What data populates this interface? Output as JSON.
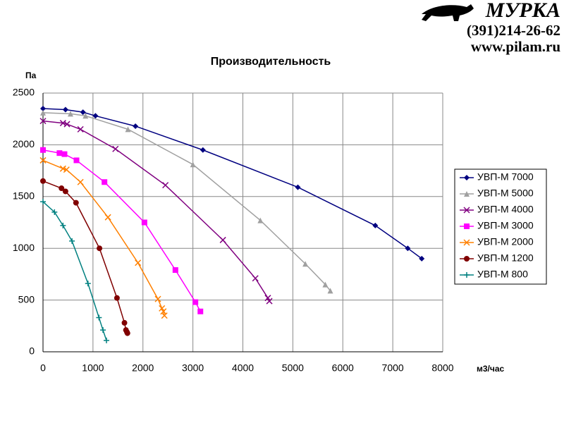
{
  "logo": {
    "brand": "МУРКА",
    "phone": "(391)214-26-62",
    "site": "www.pilam.ru"
  },
  "chart_data": {
    "type": "line",
    "title": "Производительность",
    "y_label": "Па",
    "x_label": "м3/час",
    "xlim": [
      0,
      8000
    ],
    "xticks": [
      0,
      1000,
      2000,
      3000,
      4000,
      5000,
      6000,
      7000,
      8000
    ],
    "ylim": [
      0,
      2500
    ],
    "yticks": [
      0,
      500,
      1000,
      1500,
      2000,
      2500
    ],
    "grid": true,
    "legend": "right",
    "series": [
      {
        "name": "УВП-М 7000",
        "color": "#000080",
        "marker": "diamond",
        "x": [
          0,
          450,
          800,
          1050,
          1850,
          3200,
          5100,
          6650,
          7300,
          7580
        ],
        "values": [
          2350,
          2340,
          2315,
          2280,
          2180,
          1950,
          1590,
          1220,
          1000,
          900
        ]
      },
      {
        "name": "УВП-М 5000",
        "color": "#a0a0a0",
        "marker": "triangle",
        "x": [
          0,
          550,
          850,
          1700,
          3000,
          4350,
          5250,
          5650,
          5750
        ],
        "values": [
          2310,
          2300,
          2280,
          2150,
          1810,
          1270,
          850,
          650,
          590
        ]
      },
      {
        "name": "УВП-М 4000",
        "color": "#800080",
        "marker": "x",
        "x": [
          0,
          400,
          480,
          750,
          1450,
          2450,
          3600,
          4250,
          4500,
          4530
        ],
        "values": [
          2230,
          2210,
          2200,
          2150,
          1960,
          1610,
          1080,
          710,
          520,
          490
        ]
      },
      {
        "name": "УВП-М 3000",
        "color": "#ff00ff",
        "marker": "square",
        "x": [
          0,
          330,
          430,
          670,
          1230,
          2030,
          2650,
          3050,
          3150
        ],
        "values": [
          1950,
          1920,
          1910,
          1850,
          1640,
          1250,
          790,
          480,
          390
        ]
      },
      {
        "name": "УВП-М 2000",
        "color": "#ff8000",
        "marker": "x",
        "x": [
          0,
          400,
          470,
          750,
          1300,
          1900,
          2300,
          2380,
          2410,
          2430
        ],
        "values": [
          1850,
          1770,
          1760,
          1640,
          1300,
          860,
          510,
          420,
          390,
          350
        ]
      },
      {
        "name": "УВП-М 1200",
        "color": "#800000",
        "marker": "circle",
        "x": [
          0,
          370,
          450,
          660,
          1130,
          1480,
          1630,
          1660,
          1680,
          1690
        ],
        "values": [
          1650,
          1580,
          1550,
          1440,
          1000,
          520,
          280,
          210,
          190,
          180
        ]
      },
      {
        "name": "УВП-М 800",
        "color": "#008080",
        "marker": "plus",
        "x": [
          0,
          230,
          400,
          580,
          900,
          1120,
          1200,
          1270
        ],
        "values": [
          1450,
          1350,
          1220,
          1070,
          660,
          330,
          210,
          110
        ]
      }
    ]
  }
}
